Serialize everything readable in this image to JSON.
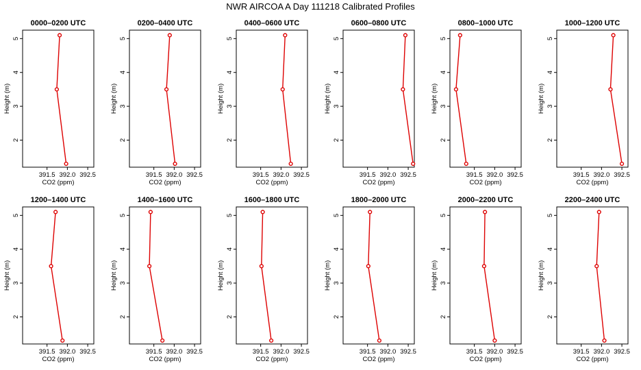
{
  "figure": {
    "title": "NWR AIRCOA A  Day 111218  Calibrated Profiles",
    "series_color": "#dd0000"
  },
  "chart_data": [
    {
      "type": "line",
      "title": "0000–0200 UTC",
      "xlabel": "CO2 (ppm)",
      "ylabel": "Height (m)",
      "xlim": [
        390.9,
        392.65
      ],
      "ylim": [
        1.2,
        5.25
      ],
      "x_ticks": [
        391.5,
        392.0,
        392.5
      ],
      "x_tick_labels": [
        "391.5",
        "392.0",
        "392.5"
      ],
      "y_ticks": [
        2,
        3,
        4,
        5
      ],
      "y_tick_labels": [
        "2",
        "3",
        "4",
        "5"
      ],
      "points": [
        {
          "x": 391.81,
          "y": 5.1
        },
        {
          "x": 391.74,
          "y": 3.5
        },
        {
          "x": 391.97,
          "y": 1.3
        }
      ]
    },
    {
      "type": "line",
      "title": "0200–0400 UTC",
      "xlabel": "CO2 (ppm)",
      "ylabel": "Height (m)",
      "xlim": [
        390.9,
        392.65
      ],
      "ylim": [
        1.2,
        5.25
      ],
      "x_ticks": [
        391.5,
        392.0,
        392.5
      ],
      "x_tick_labels": [
        "391.5",
        "392.0",
        "392.5"
      ],
      "y_ticks": [
        2,
        3,
        4,
        5
      ],
      "y_tick_labels": [
        "2",
        "3",
        "4",
        "5"
      ],
      "points": [
        {
          "x": 391.89,
          "y": 5.1
        },
        {
          "x": 391.81,
          "y": 3.5
        },
        {
          "x": 392.02,
          "y": 1.3
        }
      ]
    },
    {
      "type": "line",
      "title": "0400–0600 UTC",
      "xlabel": "CO2 (ppm)",
      "ylabel": "Height (m)",
      "xlim": [
        390.9,
        392.65
      ],
      "ylim": [
        1.2,
        5.25
      ],
      "x_ticks": [
        391.5,
        392.0,
        392.5
      ],
      "x_tick_labels": [
        "391.5",
        "392.0",
        "392.5"
      ],
      "y_ticks": [
        2,
        3,
        4,
        5
      ],
      "y_tick_labels": [
        "2",
        "3",
        "4",
        "5"
      ],
      "points": [
        {
          "x": 392.1,
          "y": 5.1
        },
        {
          "x": 392.04,
          "y": 3.5
        },
        {
          "x": 392.24,
          "y": 1.3
        }
      ]
    },
    {
      "type": "line",
      "title": "0600–0800 UTC",
      "xlabel": "CO2 (ppm)",
      "ylabel": "Height (m)",
      "xlim": [
        390.9,
        392.65
      ],
      "ylim": [
        1.2,
        5.25
      ],
      "x_ticks": [
        391.5,
        392.0,
        392.5
      ],
      "x_tick_labels": [
        "391.5",
        "392.0",
        "392.5"
      ],
      "y_ticks": [
        2,
        3,
        4,
        5
      ],
      "y_tick_labels": [
        "2",
        "3",
        "4",
        "5"
      ],
      "points": [
        {
          "x": 392.43,
          "y": 5.1
        },
        {
          "x": 392.37,
          "y": 3.5
        },
        {
          "x": 392.62,
          "y": 1.3
        }
      ]
    },
    {
      "type": "line",
      "title": "0800–1000 UTC",
      "xlabel": "CO2 (ppm)",
      "ylabel": "Height (m)",
      "xlim": [
        390.9,
        392.65
      ],
      "ylim": [
        1.2,
        5.25
      ],
      "x_ticks": [
        391.5,
        392.0,
        392.5
      ],
      "x_tick_labels": [
        "391.5",
        "392.0",
        "392.5"
      ],
      "y_ticks": [
        2,
        3,
        4,
        5
      ],
      "y_tick_labels": [
        "2",
        "3",
        "4",
        "5"
      ],
      "points": [
        {
          "x": 391.15,
          "y": 5.1
        },
        {
          "x": 391.05,
          "y": 3.5
        },
        {
          "x": 391.3,
          "y": 1.3
        }
      ]
    },
    {
      "type": "line",
      "title": "1000–1200 UTC",
      "xlabel": "CO2 (ppm)",
      "ylabel": "Height (m)",
      "xlim": [
        390.9,
        392.65
      ],
      "ylim": [
        1.2,
        5.25
      ],
      "x_ticks": [
        391.5,
        392.0,
        392.5
      ],
      "x_tick_labels": [
        "391.5",
        "392.0",
        "392.5"
      ],
      "y_ticks": [
        2,
        3,
        4,
        5
      ],
      "y_tick_labels": [
        "2",
        "3",
        "4",
        "5"
      ],
      "points": [
        {
          "x": 392.29,
          "y": 5.1
        },
        {
          "x": 392.22,
          "y": 3.5
        },
        {
          "x": 392.5,
          "y": 1.3
        }
      ]
    },
    {
      "type": "line",
      "title": "1200–1400 UTC",
      "xlabel": "CO2 (ppm)",
      "ylabel": "Height (m)",
      "xlim": [
        390.9,
        392.65
      ],
      "ylim": [
        1.2,
        5.25
      ],
      "x_ticks": [
        391.5,
        392.0,
        392.5
      ],
      "x_tick_labels": [
        "391.5",
        "392.0",
        "392.5"
      ],
      "y_ticks": [
        2,
        3,
        4,
        5
      ],
      "y_tick_labels": [
        "2",
        "3",
        "4",
        "5"
      ],
      "points": [
        {
          "x": 391.71,
          "y": 5.1
        },
        {
          "x": 391.6,
          "y": 3.5
        },
        {
          "x": 391.88,
          "y": 1.3
        }
      ]
    },
    {
      "type": "line",
      "title": "1400–1600 UTC",
      "xlabel": "CO2 (ppm)",
      "ylabel": "Height (m)",
      "xlim": [
        390.9,
        392.65
      ],
      "ylim": [
        1.2,
        5.25
      ],
      "x_ticks": [
        391.5,
        392.0,
        392.5
      ],
      "x_tick_labels": [
        "391.5",
        "392.0",
        "392.5"
      ],
      "y_ticks": [
        2,
        3,
        4,
        5
      ],
      "y_tick_labels": [
        "2",
        "3",
        "4",
        "5"
      ],
      "points": [
        {
          "x": 391.42,
          "y": 5.1
        },
        {
          "x": 391.39,
          "y": 3.5
        },
        {
          "x": 391.71,
          "y": 1.3
        }
      ]
    },
    {
      "type": "line",
      "title": "1600–1800 UTC",
      "xlabel": "CO2 (ppm)",
      "ylabel": "Height (m)",
      "xlim": [
        390.9,
        392.65
      ],
      "ylim": [
        1.2,
        5.25
      ],
      "x_ticks": [
        391.5,
        392.0,
        392.5
      ],
      "x_tick_labels": [
        "391.5",
        "392.0",
        "392.5"
      ],
      "y_ticks": [
        2,
        3,
        4,
        5
      ],
      "y_tick_labels": [
        "2",
        "3",
        "4",
        "5"
      ],
      "points": [
        {
          "x": 391.55,
          "y": 5.1
        },
        {
          "x": 391.52,
          "y": 3.5
        },
        {
          "x": 391.76,
          "y": 1.3
        }
      ]
    },
    {
      "type": "line",
      "title": "1800–2000 UTC",
      "xlabel": "CO2 (ppm)",
      "ylabel": "Height (m)",
      "xlim": [
        390.9,
        392.65
      ],
      "ylim": [
        1.2,
        5.25
      ],
      "x_ticks": [
        391.5,
        392.0,
        392.5
      ],
      "x_tick_labels": [
        "391.5",
        "392.0",
        "392.5"
      ],
      "y_ticks": [
        2,
        3,
        4,
        5
      ],
      "y_tick_labels": [
        "2",
        "3",
        "4",
        "5"
      ],
      "points": [
        {
          "x": 391.56,
          "y": 5.1
        },
        {
          "x": 391.52,
          "y": 3.5
        },
        {
          "x": 391.79,
          "y": 1.3
        }
      ]
    },
    {
      "type": "line",
      "title": "2000–2200 UTC",
      "xlabel": "CO2 (ppm)",
      "ylabel": "Height (m)",
      "xlim": [
        390.9,
        392.65
      ],
      "ylim": [
        1.2,
        5.25
      ],
      "x_ticks": [
        391.5,
        392.0,
        392.5
      ],
      "x_tick_labels": [
        "391.5",
        "392.0",
        "392.5"
      ],
      "y_ticks": [
        2,
        3,
        4,
        5
      ],
      "y_tick_labels": [
        "2",
        "3",
        "4",
        "5"
      ],
      "points": [
        {
          "x": 391.76,
          "y": 5.1
        },
        {
          "x": 391.74,
          "y": 3.5
        },
        {
          "x": 392.0,
          "y": 1.3
        }
      ]
    },
    {
      "type": "line",
      "title": "2200–2400 UTC",
      "xlabel": "CO2 (ppm)",
      "ylabel": "Height (m)",
      "xlim": [
        390.9,
        392.65
      ],
      "ylim": [
        1.2,
        5.25
      ],
      "x_ticks": [
        391.5,
        392.0,
        392.5
      ],
      "x_tick_labels": [
        "391.5",
        "392.0",
        "392.5"
      ],
      "y_ticks": [
        2,
        3,
        4,
        5
      ],
      "y_tick_labels": [
        "2",
        "3",
        "4",
        "5"
      ],
      "points": [
        {
          "x": 391.94,
          "y": 5.1
        },
        {
          "x": 391.88,
          "y": 3.5
        },
        {
          "x": 392.07,
          "y": 1.3
        }
      ]
    }
  ]
}
